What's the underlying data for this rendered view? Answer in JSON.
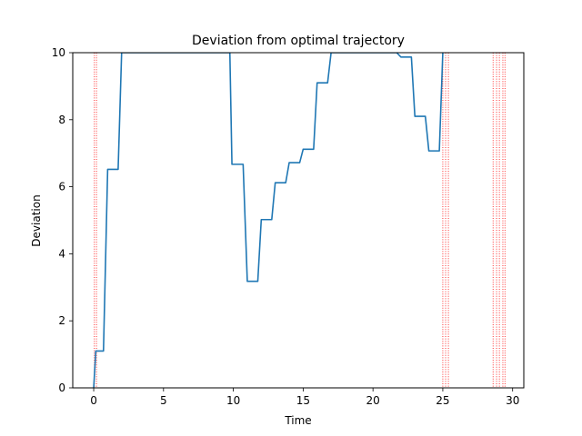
{
  "chart_data": {
    "type": "line",
    "title": "Deviation from optimal trajectory",
    "xlabel": "Time",
    "ylabel": "Deviation",
    "xlim": [
      -1.5,
      30.8
    ],
    "ylim": [
      0,
      10
    ],
    "xticks": [
      0,
      5,
      10,
      15,
      20,
      25,
      30
    ],
    "yticks": [
      0,
      2,
      4,
      6,
      8,
      10
    ],
    "grid": false,
    "legend": "none",
    "series": [
      {
        "color": "#1f77b4",
        "points": [
          [
            0.0,
            0.0
          ],
          [
            0.15,
            1.1
          ],
          [
            0.7,
            1.1
          ],
          [
            1.0,
            6.52
          ],
          [
            1.75,
            6.52
          ],
          [
            2.0,
            10.0
          ],
          [
            9.75,
            10.0
          ],
          [
            9.9,
            6.67
          ],
          [
            10.7,
            6.67
          ],
          [
            11.0,
            3.18
          ],
          [
            11.75,
            3.18
          ],
          [
            12.0,
            5.02
          ],
          [
            12.75,
            5.02
          ],
          [
            13.0,
            6.12
          ],
          [
            13.75,
            6.12
          ],
          [
            14.0,
            6.72
          ],
          [
            14.75,
            6.72
          ],
          [
            15.0,
            7.12
          ],
          [
            15.75,
            7.12
          ],
          [
            16.0,
            9.1
          ],
          [
            16.75,
            9.1
          ],
          [
            17.0,
            10.0
          ],
          [
            21.7,
            10.0
          ],
          [
            22.0,
            9.87
          ],
          [
            22.75,
            9.87
          ],
          [
            23.0,
            8.1
          ],
          [
            23.75,
            8.1
          ],
          [
            24.0,
            7.07
          ],
          [
            24.75,
            7.07
          ],
          [
            25.0,
            10.0
          ]
        ]
      }
    ],
    "vlines": {
      "color": "#ff0000",
      "style": "dotted",
      "x": [
        0.05,
        0.2,
        25.0,
        25.2,
        25.4,
        28.6,
        28.85,
        29.05,
        29.3,
        29.45
      ]
    }
  }
}
